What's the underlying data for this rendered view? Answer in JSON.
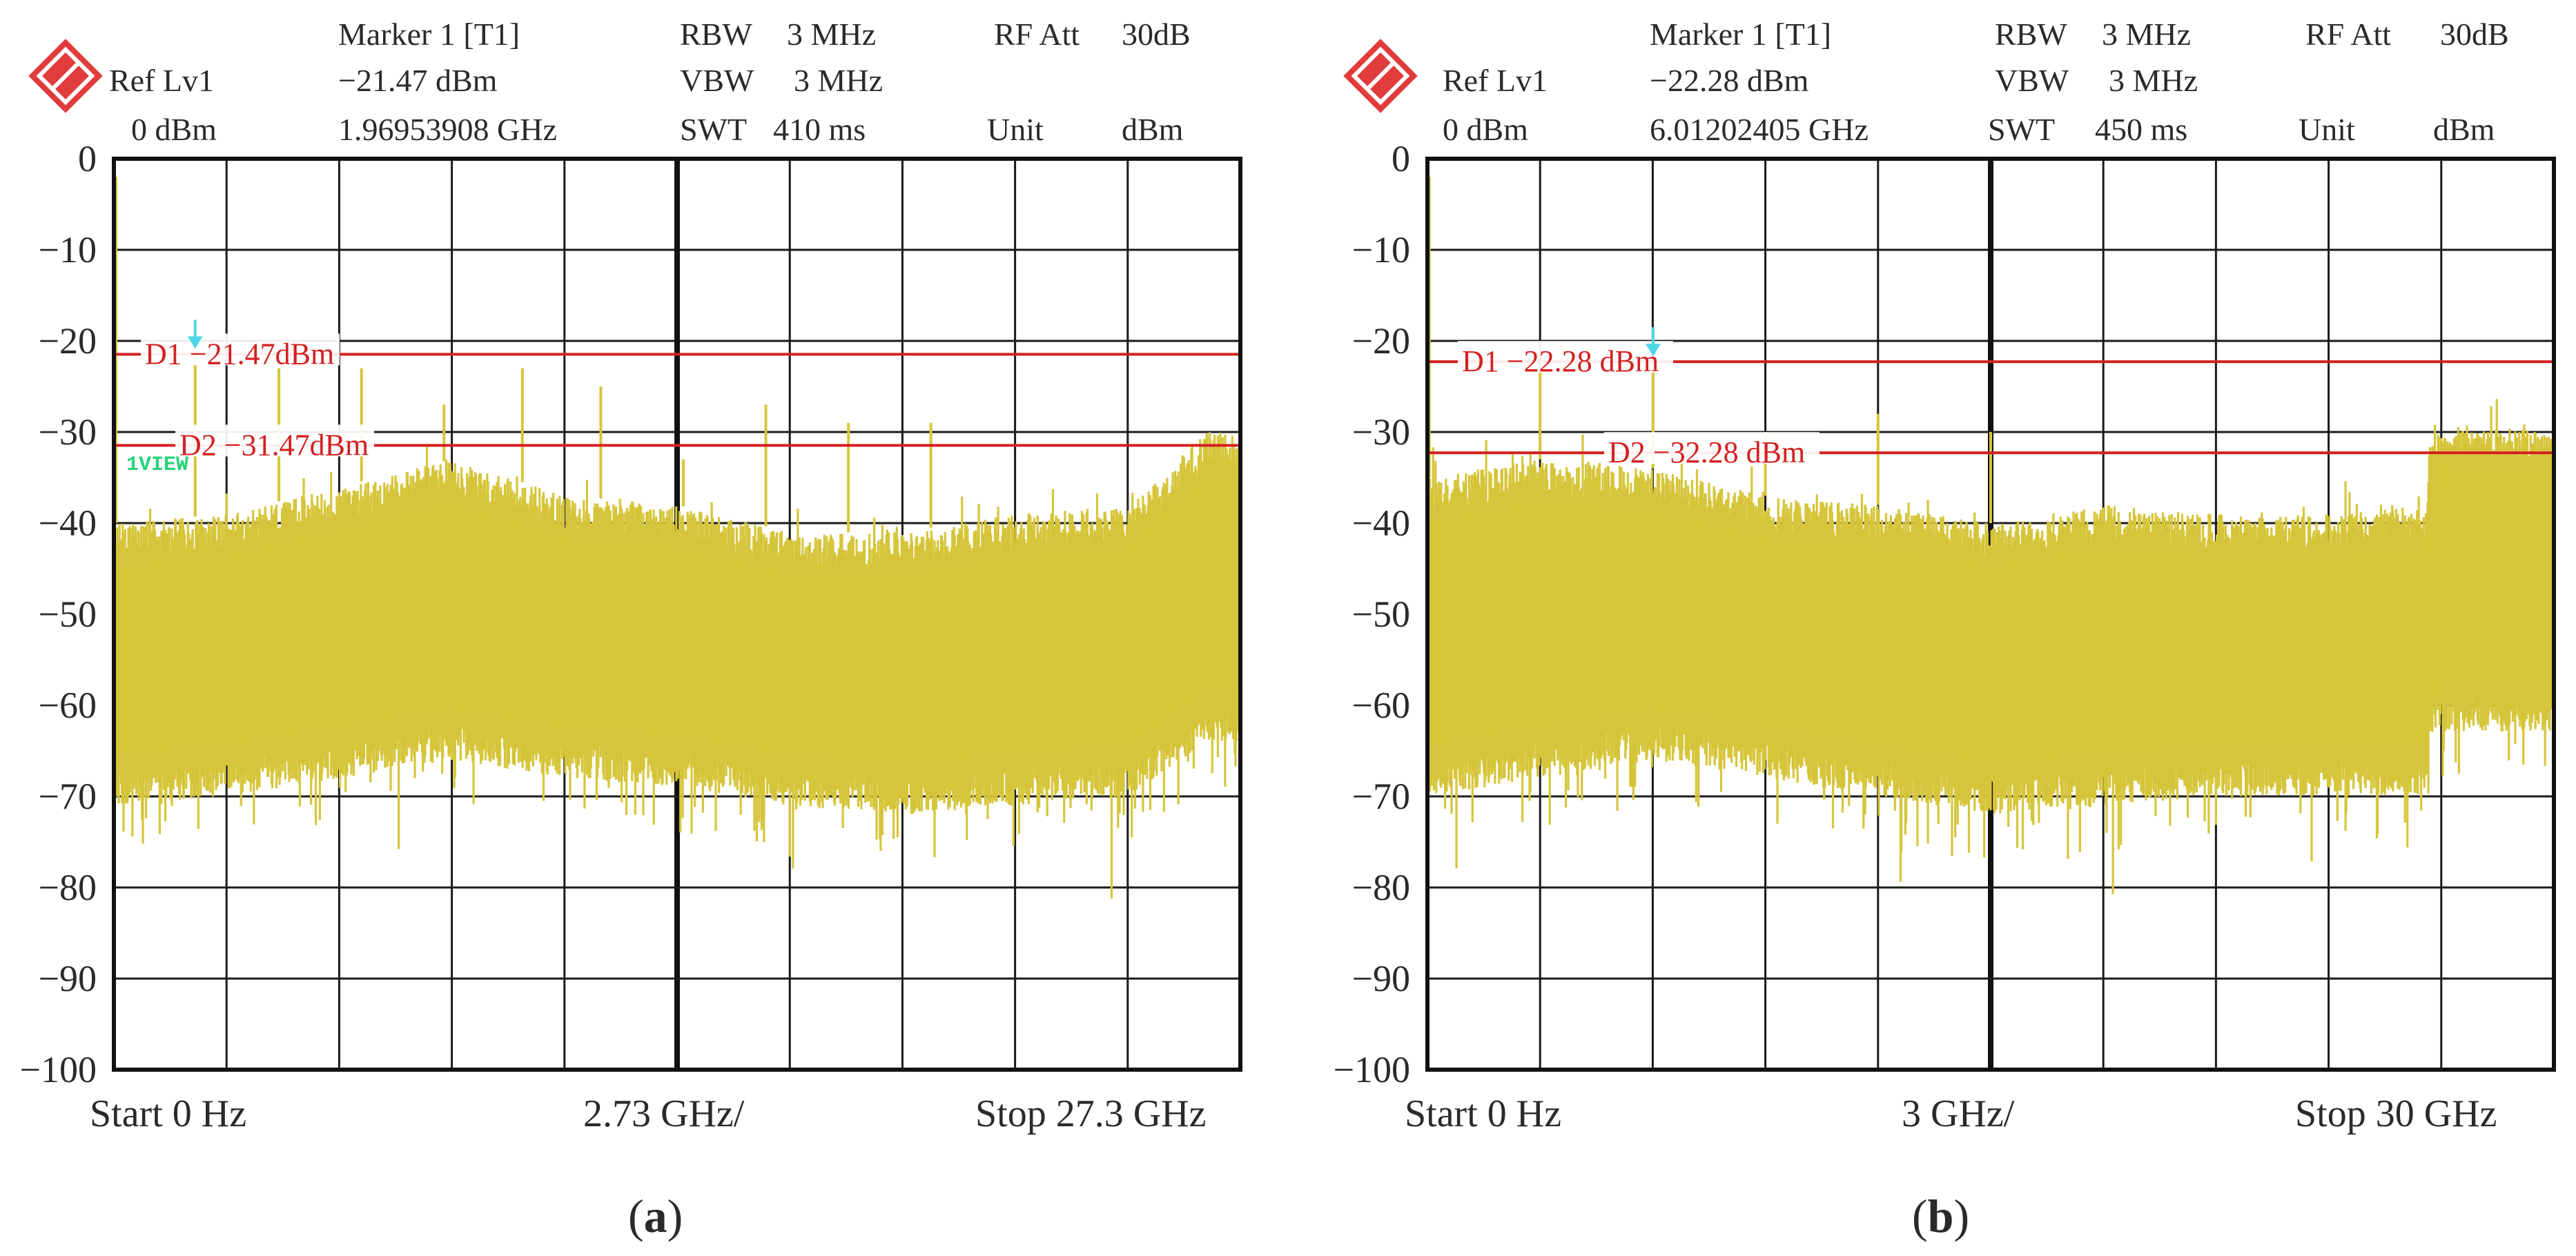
{
  "colors": {
    "trace": "#d6c53a",
    "display_line": "#d42020",
    "marker": "#4fd6e6",
    "view": "#27d27a",
    "logo": "#e23b3b"
  },
  "panels": [
    {
      "header": {
        "ref_label": "Ref Lv1",
        "ref_value": "0 dBm",
        "marker_label": "Marker 1 [T1]",
        "marker_value": "−21.47 dBm",
        "marker_freq": "1.96953908 GHz",
        "rbw_label": "RBW",
        "rbw_value": "3 MHz",
        "vbw_label": "VBW",
        "vbw_value": "3 MHz",
        "swt_label": "SWT",
        "swt_value": "410 ms",
        "rfatt_label": "RF Att",
        "rfatt_value": "30dB",
        "unit_label": "Unit",
        "unit_value": "dBm"
      },
      "footer": {
        "start": "Start 0 Hz",
        "span": "2.73 GHz/",
        "stop": "Stop 27.3 GHz"
      },
      "caption": "a",
      "view_label": "1VIEW",
      "lines": [
        {
          "label": "D1 −21.47dBm"
        },
        {
          "label": "D2 −31.47dBm"
        }
      ]
    },
    {
      "header": {
        "ref_label": "Ref Lv1",
        "ref_value": "0 dBm",
        "marker_label": "Marker 1 [T1]",
        "marker_value": "−22.28 dBm",
        "marker_freq": "6.01202405 GHz",
        "rbw_label": "RBW",
        "rbw_value": "3 MHz",
        "vbw_label": "VBW",
        "vbw_value": "3 MHz",
        "swt_label": "SWT",
        "swt_value": "450 ms",
        "rfatt_label": "RF Att",
        "rfatt_value": "30dB",
        "unit_label": "Unit",
        "unit_value": "dBm"
      },
      "footer": {
        "start": "Start 0 Hz",
        "span": "3 GHz/",
        "stop": "Stop 30 GHz"
      },
      "caption": "b",
      "lines": [
        {
          "label": "D1 −22.28 dBm"
        },
        {
          "label": "D2 −32.28 dBm"
        }
      ]
    }
  ],
  "chart_data": [
    {
      "type": "line",
      "ylim": [
        -100,
        0
      ],
      "xlim": [
        0,
        27.3
      ],
      "yticks": [
        "0",
        "−10",
        "−20",
        "−30",
        "−40",
        "−50",
        "−60",
        "−70",
        "−80",
        "−90",
        "−100"
      ],
      "grid": true,
      "display_lines_dbm": [
        -21.47,
        -31.47
      ],
      "marker": {
        "x": 1.9695,
        "y": -21.47
      },
      "noise_envelope": {
        "x": [
          0,
          2.73,
          5.46,
          8.19,
          10.92,
          13.65,
          16.38,
          19.11,
          21.84,
          24.57,
          26.5,
          27.3
        ],
        "top": [
          -40,
          -39,
          -36,
          -33,
          -37,
          -38,
          -41,
          -41,
          -39,
          -38,
          -30,
          -30
        ],
        "bottom": [
          -71,
          -70,
          -68,
          -66,
          -68,
          -69,
          -71,
          -72,
          -71,
          -70,
          -64,
          -64
        ]
      },
      "spurs": [
        {
          "x": 0.05,
          "y": -2
        },
        {
          "x": 1.97,
          "y": -21.5
        },
        {
          "x": 4.0,
          "y": -23
        },
        {
          "x": 6.0,
          "y": -23
        },
        {
          "x": 8.0,
          "y": -27
        },
        {
          "x": 9.9,
          "y": -23
        },
        {
          "x": 11.8,
          "y": -25
        },
        {
          "x": 13.8,
          "y": -33
        },
        {
          "x": 15.8,
          "y": -27
        },
        {
          "x": 17.8,
          "y": -29
        },
        {
          "x": 19.8,
          "y": -29
        }
      ]
    },
    {
      "type": "line",
      "ylim": [
        -100,
        0
      ],
      "xlim": [
        0,
        30
      ],
      "yticks": [
        "0",
        "−10",
        "−20",
        "−30",
        "−40",
        "−50",
        "−60",
        "−70",
        "−80",
        "−90",
        "−100"
      ],
      "grid": true,
      "display_lines_dbm": [
        -22.28,
        -32.28
      ],
      "marker": {
        "x": 6.012,
        "y": -22.28
      },
      "noise_envelope": {
        "x": [
          0,
          3,
          6,
          9,
          12,
          15,
          18,
          21,
          24,
          26.6,
          26.7,
          30
        ],
        "top": [
          -35,
          -33,
          -34,
          -37,
          -38,
          -40,
          -38,
          -39,
          -39,
          -38,
          -29,
          -30
        ],
        "bottom": [
          -70,
          -68,
          -66,
          -68,
          -70,
          -72,
          -71,
          -70,
          -70,
          -70,
          -63,
          -63
        ]
      },
      "spurs": [
        {
          "x": 0.05,
          "y": -2
        },
        {
          "x": 3.0,
          "y": -23
        },
        {
          "x": 6.01,
          "y": -22.3
        },
        {
          "x": 9.0,
          "y": -30
        },
        {
          "x": 12.0,
          "y": -28
        },
        {
          "x": 15.0,
          "y": -30
        }
      ]
    }
  ]
}
